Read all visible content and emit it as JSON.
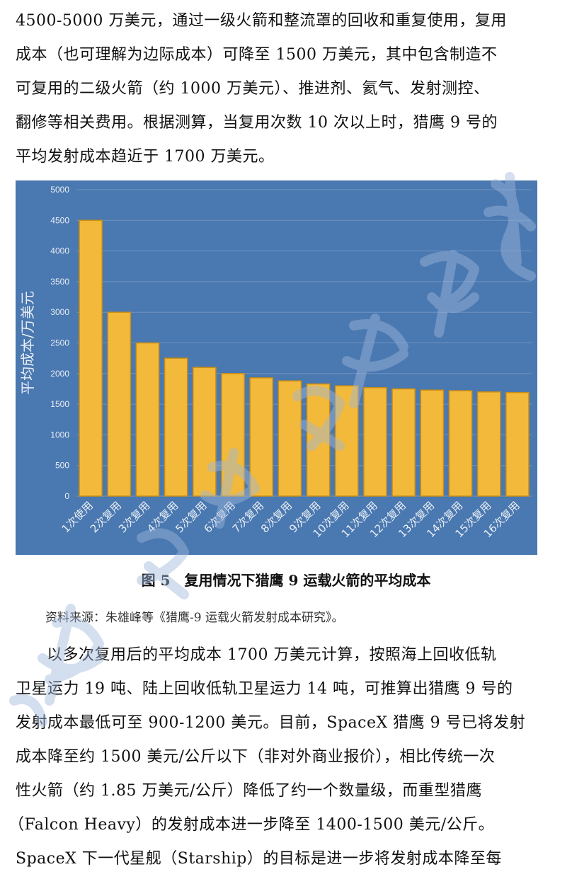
{
  "paragraph_top": {
    "lines": [
      "4500-5000 万美元，通过一级火箭和整流罩的回收和重复使用，复用",
      "成本（也可理解为边际成本）可降至 1500 万美元，其中包含制造不",
      "可复用的二级火箭（约 1000 万美元）、推进剂、氦气、发射测控、",
      "翻修等相关费用。根据测算，当复用次数 10 次以上时，猎鹰 9 号的",
      "平均发射成本趋近于 1700 万美元。"
    ]
  },
  "chart_data": {
    "type": "bar",
    "categories": [
      "1次使用",
      "2次复用",
      "3次复用",
      "4次复用",
      "5次复用",
      "6次复用",
      "7次复用",
      "8次复用",
      "9次复用",
      "10次复用",
      "11次复用",
      "12次复用",
      "13次复用",
      "14次复用",
      "15次复用",
      "16次复用"
    ],
    "values": [
      4500,
      3000,
      2500,
      2250,
      2100,
      2000,
      1930,
      1880,
      1830,
      1800,
      1770,
      1750,
      1730,
      1720,
      1700,
      1690
    ],
    "ylabel": "平均成本/万美元",
    "xlabel": "",
    "ylim": [
      0,
      5000
    ],
    "yticks": [
      "0",
      "500",
      "1000",
      "1500",
      "2000",
      "2500",
      "3000",
      "3500",
      "4000",
      "4500",
      "5000"
    ],
    "grid": true,
    "colors": {
      "background": "#4a78b0",
      "bar": "#f2b93b",
      "bar_edge": "#c98d12",
      "grid": "#6f93c2",
      "text": "#e9eef6"
    }
  },
  "figure": {
    "caption": "图 5　复用情况下猎鹰 9 运载火箭的平均成本",
    "source": "资料来源：朱雄峰等《猎鹰-9 运载火箭发射成本研究》。"
  },
  "paragraph_bottom": {
    "lines": [
      "以多次复用后的平均成本 1700 万美元计算，按照海上回收低轨",
      "卫星运力 19 吨、陆上回收低轨卫星运力 14 吨，可推算出猎鹰 9 号的",
      "发射成本最低可至 900-1200 美元。目前，SpaceX 猎鹰 9 号已将发射",
      "成本降至约 1500 美元/公斤以下（非对外商业报价），相比传统一次",
      "性火箭（约 1.85 万美元/公斤）降低了约一个数量级，而重型猎鹰",
      "（Falcon Heavy）的发射成本进一步降至 1400-1500 美元/公斤。",
      "SpaceX 下一代星舰（Starship）的目标是进一步将发射成本降至每"
    ]
  },
  "watermark": {
    "color": "#9fb7dc"
  }
}
